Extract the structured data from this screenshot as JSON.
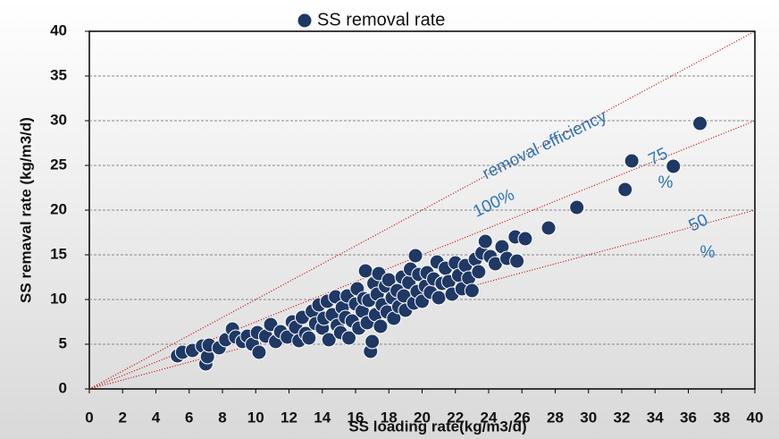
{
  "chart_data": {
    "type": "scatter",
    "legend": "SS removal rate",
    "xlabel": "SS loading rate(kg/m3/d)",
    "ylabel": "SS remaval rate (kg/m3/d)",
    "annotation": "removal efficiency",
    "color": "#1f3864",
    "line_color": "#c00000",
    "grid": true,
    "xlim": [
      0,
      40
    ],
    "ylim": [
      0,
      40
    ],
    "xticks": [
      0,
      2,
      4,
      6,
      8,
      10,
      12,
      14,
      16,
      18,
      20,
      22,
      24,
      26,
      28,
      30,
      32,
      34,
      36,
      38,
      40
    ],
    "yticks": [
      0,
      5,
      10,
      15,
      20,
      25,
      30,
      35,
      40
    ],
    "reference_lines": [
      {
        "label": [
          "100%"
        ],
        "x": [
          0,
          40
        ],
        "y": [
          0,
          40
        ]
      },
      {
        "label": [
          "75",
          "%"
        ],
        "x": [
          0,
          40
        ],
        "y": [
          0,
          30
        ]
      },
      {
        "label": [
          "50",
          "%"
        ],
        "x": [
          0,
          40
        ],
        "y": [
          0,
          20
        ]
      }
    ],
    "x": [
      5.3,
      5.6,
      6.2,
      6.8,
      7.0,
      7.1,
      7.2,
      7.8,
      8.2,
      8.6,
      8.8,
      9.2,
      9.5,
      9.8,
      10.1,
      10.2,
      10.6,
      10.9,
      11.2,
      11.5,
      11.9,
      12.2,
      12.4,
      12.6,
      12.8,
      13.0,
      13.2,
      13.4,
      13.6,
      13.8,
      14.0,
      14.1,
      14.3,
      14.4,
      14.6,
      14.8,
      14.9,
      15.1,
      15.2,
      15.4,
      15.5,
      15.6,
      15.8,
      16.0,
      16.1,
      16.2,
      16.4,
      16.5,
      16.6,
      16.7,
      16.8,
      16.9,
      17.0,
      17.1,
      17.2,
      17.3,
      17.4,
      17.5,
      17.6,
      17.8,
      17.9,
      18.0,
      18.2,
      18.3,
      18.5,
      18.6,
      18.8,
      18.9,
      19.0,
      19.2,
      19.3,
      19.5,
      19.6,
      19.7,
      19.8,
      20.0,
      20.2,
      20.3,
      20.5,
      20.7,
      20.9,
      21.0,
      21.2,
      21.4,
      21.6,
      21.8,
      22.0,
      22.2,
      22.4,
      22.6,
      22.8,
      23.0,
      23.2,
      23.4,
      23.6,
      23.8,
      24.1,
      24.4,
      24.8,
      25.1,
      25.6,
      25.7,
      26.2,
      27.6,
      29.3,
      32.2,
      32.6,
      35.1,
      36.7
    ],
    "values": [
      3.7,
      4.1,
      4.3,
      4.8,
      2.8,
      3.6,
      4.9,
      4.6,
      5.5,
      6.7,
      5.8,
      5.3,
      5.9,
      5.0,
      6.3,
      4.1,
      5.9,
      7.2,
      5.3,
      6.4,
      5.8,
      7.5,
      6.9,
      5.4,
      8.0,
      6.2,
      5.7,
      8.7,
      7.3,
      9.4,
      6.8,
      7.9,
      9.8,
      5.5,
      8.3,
      10.3,
      7.1,
      6.3,
      9.1,
      8.0,
      10.4,
      5.7,
      7.6,
      9.5,
      11.2,
      6.8,
      8.7,
      10.1,
      13.2,
      7.4,
      9.9,
      4.2,
      5.3,
      11.8,
      8.3,
      10.6,
      12.9,
      7.0,
      9.4,
      11.5,
      8.6,
      12.2,
      10.2,
      7.9,
      11.0,
      9.2,
      12.5,
      10.4,
      8.8,
      11.9,
      13.4,
      9.6,
      14.9,
      10.9,
      12.8,
      9.8,
      11.5,
      13.0,
      10.8,
      12.3,
      14.2,
      10.2,
      11.8,
      13.5,
      12.0,
      10.6,
      14.1,
      12.7,
      11.2,
      13.8,
      12.4,
      11.0,
      14.5,
      13.1,
      15.2,
      16.5,
      14.8,
      14.0,
      15.9,
      14.6,
      17.0,
      14.3,
      16.8,
      18.0,
      20.3,
      22.3,
      25.5,
      24.9,
      29.7
    ]
  }
}
